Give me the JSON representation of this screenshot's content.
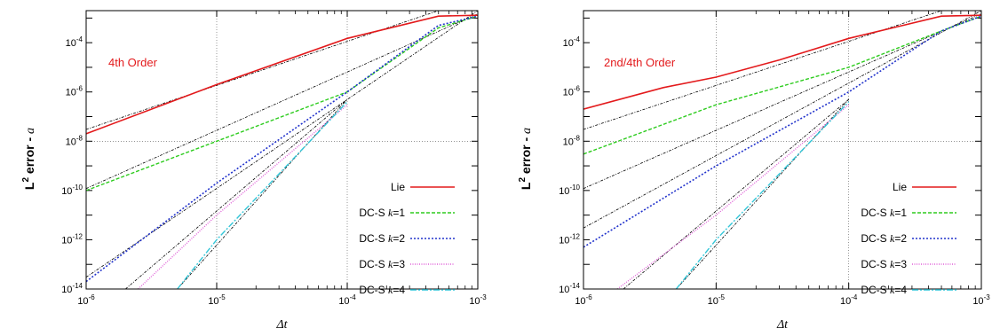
{
  "chart_data": [
    {
      "type": "line",
      "annotation": "4th Order",
      "annotation_color": "#e31a1c",
      "xlabel": "Δt",
      "ylabel_main": "L",
      "ylabel_sup": "2",
      "ylabel_rest": " error - ",
      "ylabel_var": "a",
      "log_x": true,
      "log_y": true,
      "xlim": [
        1e-06,
        0.001
      ],
      "ylim": [
        1e-14,
        0.002
      ],
      "grid": "major vertical and horizontal at 1e-5, 1e-4 (x) and 1e-8 (y)",
      "legend_position": "bottom-right",
      "x_ticks": [
        {
          "base": "10",
          "exp": "-6"
        },
        {
          "base": "10",
          "exp": "-5"
        },
        {
          "base": "10",
          "exp": "-4"
        },
        {
          "base": "10",
          "exp": "-3"
        }
      ],
      "y_ticks": [
        {
          "base": "10",
          "exp": "-14"
        },
        {
          "base": "10",
          "exp": "-12"
        },
        {
          "base": "10",
          "exp": "-10"
        },
        {
          "base": "10",
          "exp": "-8"
        },
        {
          "base": "10",
          "exp": "-6"
        },
        {
          "base": "10",
          "exp": "-4"
        }
      ],
      "series": [
        {
          "name": "Lie",
          "label_prefix": "Lie",
          "label_k": "",
          "color": "#e31a1c",
          "dash": "",
          "width": 1.6,
          "points": [
            [
              1e-06,
              2e-08
            ],
            [
              1e-05,
              2e-06
            ],
            [
              0.0001,
              0.00015
            ],
            [
              0.0005,
              0.0012
            ],
            [
              0.001,
              0.0013
            ]
          ]
        },
        {
          "name": "DC-S k=1",
          "label_prefix": "DC-S ",
          "label_k": "k=1",
          "color": "#2ecc1f",
          "dash": "4,2",
          "width": 1.4,
          "points": [
            [
              1e-06,
              1e-10
            ],
            [
              1e-05,
              1e-08
            ],
            [
              0.0001,
              1e-06
            ],
            [
              0.0005,
              0.0004
            ],
            [
              0.001,
              0.0012
            ]
          ]
        },
        {
          "name": "DC-S k=2",
          "label_prefix": "DC-S ",
          "label_k": "k=2",
          "color": "#2233cc",
          "dash": "2,2",
          "width": 1.6,
          "points": [
            [
              1e-06,
              2e-14
            ],
            [
              1e-05,
              2e-10
            ],
            [
              0.0001,
              1e-06
            ],
            [
              0.0005,
              0.0005
            ],
            [
              0.001,
              0.0012
            ]
          ]
        },
        {
          "name": "DC-S k=3",
          "label_prefix": "DC-S ",
          "label_k": "k=3",
          "color": "#e060d8",
          "dash": "1,1.5",
          "width": 1.4,
          "points": [
            [
              2.5e-06,
              1e-14
            ],
            [
              1e-05,
              1e-11
            ],
            [
              0.0001,
              3e-07
            ]
          ]
        },
        {
          "name": "DC-S k=4",
          "label_prefix": "DC-S ",
          "label_k": "k=4",
          "color": "#33c6d8",
          "dash": "7,2,2,2",
          "width": 1.4,
          "points": [
            [
              5e-06,
              1e-14
            ],
            [
              1e-05,
              1e-12
            ],
            [
              0.0001,
              4e-07
            ]
          ]
        }
      ],
      "reference_lines": [
        {
          "points": [
            [
              1e-06,
              3e-08
            ],
            [
              0.0005,
              0.002
            ]
          ]
        },
        {
          "points": [
            [
              1e-06,
              1.2e-10
            ],
            [
              0.001,
              0.0015
            ]
          ]
        },
        {
          "points": [
            [
              1e-06,
              3e-14
            ],
            [
              0.001,
              0.002
            ]
          ]
        },
        {
          "points": [
            [
              2e-06,
              1e-14
            ],
            [
              0.0001,
              5e-07
            ]
          ]
        },
        {
          "points": [
            [
              5e-06,
              1e-14
            ],
            [
              0.0001,
              5e-07
            ]
          ]
        }
      ]
    },
    {
      "type": "line",
      "annotation": "2nd/4th Order",
      "annotation_color": "#e31a1c",
      "xlabel": "Δt",
      "ylabel_main": "L",
      "ylabel_sup": "2",
      "ylabel_rest": " error - ",
      "ylabel_var": "a",
      "log_x": true,
      "log_y": true,
      "xlim": [
        1e-06,
        0.001
      ],
      "ylim": [
        1e-14,
        0.002
      ],
      "grid": "major vertical and horizontal at 1e-5, 1e-4 (x) and 1e-8 (y)",
      "legend_position": "bottom-right",
      "x_ticks": [
        {
          "base": "10",
          "exp": "-6"
        },
        {
          "base": "10",
          "exp": "-5"
        },
        {
          "base": "10",
          "exp": "-4"
        },
        {
          "base": "10",
          "exp": "-3"
        }
      ],
      "y_ticks": [
        {
          "base": "10",
          "exp": "-14"
        },
        {
          "base": "10",
          "exp": "-12"
        },
        {
          "base": "10",
          "exp": "-10"
        },
        {
          "base": "10",
          "exp": "-8"
        },
        {
          "base": "10",
          "exp": "-6"
        },
        {
          "base": "10",
          "exp": "-4"
        }
      ],
      "series": [
        {
          "name": "Lie",
          "label_prefix": "Lie",
          "label_k": "",
          "color": "#e31a1c",
          "dash": "",
          "width": 1.6,
          "points": [
            [
              1e-06,
              2e-07
            ],
            [
              4e-06,
              1.5e-06
            ],
            [
              1e-05,
              4e-06
            ],
            [
              3e-05,
              2e-05
            ],
            [
              0.0001,
              0.00015
            ],
            [
              0.0005,
              0.0012
            ],
            [
              0.001,
              0.0013
            ]
          ]
        },
        {
          "name": "DC-S k=1",
          "label_prefix": "DC-S ",
          "label_k": "k=1",
          "color": "#2ecc1f",
          "dash": "4,2",
          "width": 1.4,
          "points": [
            [
              1e-06,
              3e-09
            ],
            [
              1e-05,
              3e-07
            ],
            [
              0.0001,
              1e-05
            ],
            [
              0.0005,
              0.0003
            ],
            [
              0.001,
              0.0012
            ]
          ]
        },
        {
          "name": "DC-S k=2",
          "label_prefix": "DC-S ",
          "label_k": "k=2",
          "color": "#2233cc",
          "dash": "2,2",
          "width": 1.6,
          "points": [
            [
              1e-06,
              5e-13
            ],
            [
              1e-05,
              1e-09
            ],
            [
              0.0001,
              1e-06
            ],
            [
              0.0005,
              0.0003
            ],
            [
              0.001,
              0.0012
            ]
          ]
        },
        {
          "name": "DC-S k=3",
          "label_prefix": "DC-S ",
          "label_k": "k=3",
          "color": "#e060d8",
          "dash": "1,1.5",
          "width": 1.4,
          "points": [
            [
              1.8e-06,
              1e-14
            ],
            [
              1e-05,
              1e-11
            ],
            [
              0.0001,
              3e-07
            ]
          ]
        },
        {
          "name": "DC-S k=4",
          "label_prefix": "DC-S ",
          "label_k": "k=4",
          "color": "#33c6d8",
          "dash": "7,2,2,2",
          "width": 1.4,
          "points": [
            [
              5e-06,
              1e-14
            ],
            [
              1e-05,
              1e-12
            ],
            [
              0.0001,
              4e-07
            ]
          ]
        }
      ],
      "reference_lines": [
        {
          "points": [
            [
              1e-06,
              3e-08
            ],
            [
              0.0005,
              0.002
            ]
          ]
        },
        {
          "points": [
            [
              1e-06,
              1.2e-10
            ],
            [
              0.001,
              0.0015
            ]
          ]
        },
        {
          "points": [
            [
              1e-06,
              3e-12
            ],
            [
              0.001,
              0.002
            ]
          ]
        },
        {
          "points": [
            [
              2e-06,
              1e-14
            ],
            [
              0.0001,
              5e-07
            ]
          ]
        },
        {
          "points": [
            [
              5e-06,
              1e-14
            ],
            [
              0.0001,
              5e-07
            ]
          ]
        }
      ]
    }
  ]
}
